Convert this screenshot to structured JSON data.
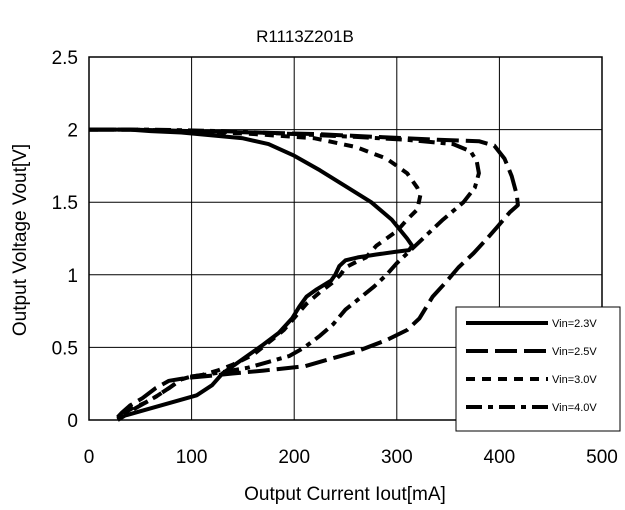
{
  "chart_data": {
    "type": "line",
    "title": "R1113Z201B",
    "xlabel": "Output Current Iout[mA]",
    "ylabel": "Output Voltage Vout[V]",
    "xlim": [
      0,
      500
    ],
    "ylim": [
      0,
      2.5
    ],
    "x_ticks": [
      "0",
      "100",
      "200",
      "300",
      "400",
      "500"
    ],
    "y_ticks": [
      "0",
      "0.5",
      "1",
      "1.5",
      "2",
      "2.5"
    ],
    "grid": true,
    "legend_position": "bottom-right",
    "series": [
      {
        "name": "Vin=2.3V",
        "dash": "solid",
        "points": [
          [
            0,
            2.0
          ],
          [
            20,
            2.0
          ],
          [
            40,
            2.0
          ],
          [
            60,
            1.99
          ],
          [
            90,
            1.98
          ],
          [
            120,
            1.96
          ],
          [
            150,
            1.94
          ],
          [
            175,
            1.9
          ],
          [
            200,
            1.82
          ],
          [
            225,
            1.72
          ],
          [
            250,
            1.61
          ],
          [
            275,
            1.5
          ],
          [
            295,
            1.38
          ],
          [
            310,
            1.25
          ],
          [
            315,
            1.2
          ],
          [
            312,
            1.17
          ],
          [
            300,
            1.16
          ],
          [
            280,
            1.14
          ],
          [
            262,
            1.12
          ],
          [
            250,
            1.1
          ],
          [
            244,
            1.06
          ],
          [
            240,
            1.0
          ],
          [
            236,
            0.96
          ],
          [
            222,
            0.9
          ],
          [
            212,
            0.85
          ],
          [
            205,
            0.78
          ],
          [
            198,
            0.7
          ],
          [
            185,
            0.6
          ],
          [
            170,
            0.52
          ],
          [
            150,
            0.42
          ],
          [
            130,
            0.32
          ],
          [
            120,
            0.24
          ],
          [
            105,
            0.17
          ],
          [
            80,
            0.12
          ],
          [
            55,
            0.07
          ],
          [
            35,
            0.03
          ],
          [
            28,
            0.0
          ]
        ]
      },
      {
        "name": "Vin=2.5V",
        "dash": "long-dash",
        "points": [
          [
            0,
            2.0
          ],
          [
            40,
            2.0
          ],
          [
            100,
            1.99
          ],
          [
            160,
            1.98
          ],
          [
            220,
            1.97
          ],
          [
            280,
            1.95
          ],
          [
            340,
            1.93
          ],
          [
            380,
            1.92
          ],
          [
            395,
            1.89
          ],
          [
            405,
            1.8
          ],
          [
            412,
            1.68
          ],
          [
            417,
            1.55
          ],
          [
            418,
            1.48
          ],
          [
            410,
            1.43
          ],
          [
            398,
            1.33
          ],
          [
            388,
            1.25
          ],
          [
            375,
            1.15
          ],
          [
            360,
            1.05
          ],
          [
            348,
            0.95
          ],
          [
            335,
            0.85
          ],
          [
            322,
            0.7
          ],
          [
            310,
            0.62
          ],
          [
            290,
            0.55
          ],
          [
            260,
            0.47
          ],
          [
            235,
            0.42
          ],
          [
            210,
            0.37
          ],
          [
            170,
            0.34
          ],
          [
            140,
            0.32
          ],
          [
            112,
            0.3
          ],
          [
            95,
            0.29
          ],
          [
            78,
            0.27
          ],
          [
            65,
            0.22
          ],
          [
            52,
            0.15
          ],
          [
            40,
            0.1
          ],
          [
            32,
            0.05
          ],
          [
            28,
            0.02
          ]
        ]
      },
      {
        "name": "Vin=3.0V",
        "dash": "short-dash",
        "points": [
          [
            0,
            2.0
          ],
          [
            40,
            2.0
          ],
          [
            100,
            1.99
          ],
          [
            160,
            1.97
          ],
          [
            220,
            1.94
          ],
          [
            260,
            1.88
          ],
          [
            290,
            1.8
          ],
          [
            310,
            1.7
          ],
          [
            320,
            1.6
          ],
          [
            323,
            1.55
          ],
          [
            320,
            1.45
          ],
          [
            310,
            1.38
          ],
          [
            300,
            1.3
          ],
          [
            290,
            1.25
          ],
          [
            280,
            1.2
          ],
          [
            270,
            1.12
          ],
          [
            258,
            1.08
          ],
          [
            250,
            1.05
          ],
          [
            245,
            1.0
          ],
          [
            238,
            0.95
          ],
          [
            225,
            0.88
          ],
          [
            212,
            0.8
          ],
          [
            202,
            0.72
          ],
          [
            190,
            0.62
          ],
          [
            178,
            0.55
          ],
          [
            160,
            0.45
          ],
          [
            140,
            0.38
          ],
          [
            125,
            0.34
          ],
          [
            110,
            0.31
          ],
          [
            100,
            0.3
          ],
          [
            90,
            0.28
          ],
          [
            78,
            0.22
          ],
          [
            65,
            0.16
          ],
          [
            55,
            0.12
          ],
          [
            42,
            0.08
          ],
          [
            32,
            0.04
          ],
          [
            28,
            0.01
          ]
        ]
      },
      {
        "name": "Vin=4.0V",
        "dash": "dash-dot",
        "points": [
          [
            0,
            2.0
          ],
          [
            60,
            2.0
          ],
          [
            130,
            1.99
          ],
          [
            200,
            1.97
          ],
          [
            260,
            1.95
          ],
          [
            310,
            1.93
          ],
          [
            355,
            1.9
          ],
          [
            372,
            1.85
          ],
          [
            378,
            1.78
          ],
          [
            380,
            1.7
          ],
          [
            376,
            1.6
          ],
          [
            365,
            1.5
          ],
          [
            345,
            1.38
          ],
          [
            330,
            1.28
          ],
          [
            315,
            1.18
          ],
          [
            300,
            1.08
          ],
          [
            290,
            1.0
          ],
          [
            278,
            0.92
          ],
          [
            264,
            0.84
          ],
          [
            250,
            0.76
          ],
          [
            238,
            0.66
          ],
          [
            225,
            0.58
          ],
          [
            210,
            0.5
          ],
          [
            195,
            0.44
          ],
          [
            175,
            0.4
          ],
          [
            155,
            0.36
          ],
          [
            130,
            0.33
          ],
          [
            112,
            0.31
          ],
          [
            100,
            0.3
          ],
          [
            90,
            0.28
          ],
          [
            78,
            0.22
          ],
          [
            65,
            0.16
          ],
          [
            50,
            0.1
          ],
          [
            35,
            0.04
          ],
          [
            28,
            0.01
          ]
        ]
      }
    ]
  }
}
